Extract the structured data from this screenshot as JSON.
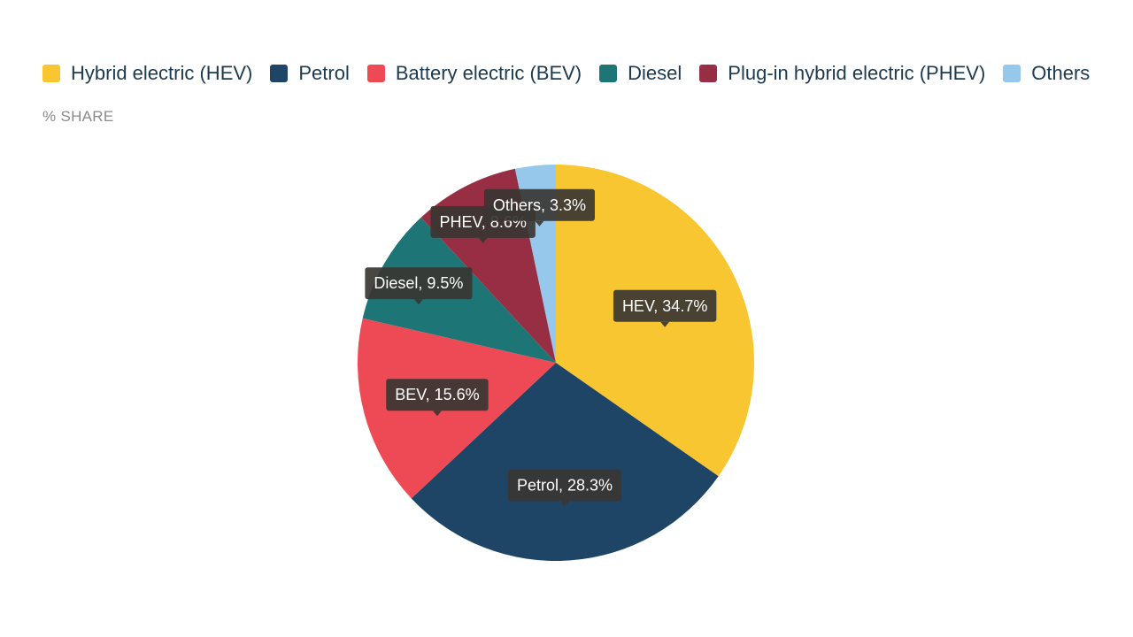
{
  "chart_data": {
    "type": "pie",
    "title": "",
    "subtitle": "% SHARE",
    "legend_position": "top",
    "slices": [
      {
        "legend": "Hybrid electric (HEV)",
        "label": "HEV, 34.7%",
        "value": 34.7,
        "color": "#f8c630"
      },
      {
        "legend": "Petrol",
        "label": "Petrol, 28.3%",
        "value": 28.3,
        "color": "#1f4566"
      },
      {
        "legend": "Battery electric (BEV)",
        "label": "BEV, 15.6%",
        "value": 15.6,
        "color": "#ee4a55"
      },
      {
        "legend": "Diesel",
        "label": "Diesel, 9.5%",
        "value": 9.5,
        "color": "#1d7675"
      },
      {
        "legend": "Plug-in hybrid electric (PHEV)",
        "label": "PHEV, 8.6%",
        "value": 8.6,
        "color": "#982e43"
      },
      {
        "legend": "Others",
        "label": "Others, 3.3%",
        "value": 3.3,
        "color": "#95c8ea"
      }
    ]
  }
}
